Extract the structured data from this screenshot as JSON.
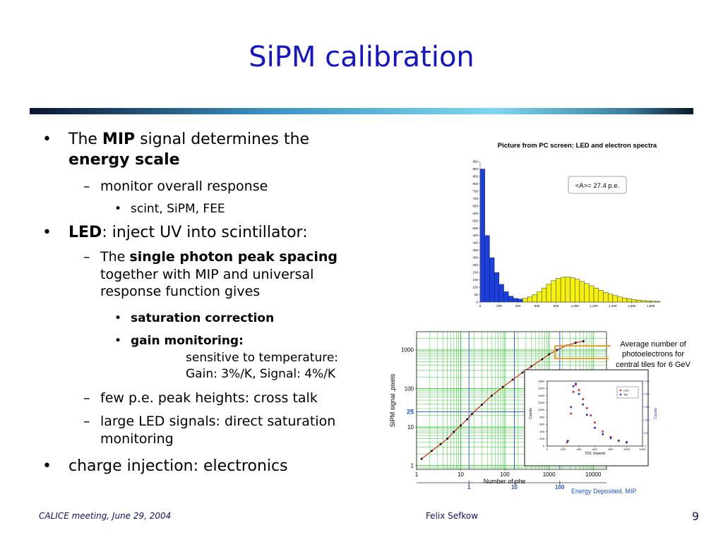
{
  "slide": {
    "title": "SiPM calibration",
    "bullets": [
      {
        "level": 1,
        "marker": "•",
        "runs": [
          {
            "text": "The "
          },
          {
            "text": "MIP",
            "bold": true
          },
          {
            "text": " signal determines the "
          },
          {
            "text": "energy scale",
            "bold": true
          }
        ]
      },
      {
        "level": 2,
        "marker": "–",
        "runs": [
          {
            "text": "monitor overall response"
          }
        ]
      },
      {
        "level": 3,
        "marker": "•",
        "runs": [
          {
            "text": "scint, SiPM, FEE"
          }
        ]
      },
      {
        "level": 1,
        "marker": "•",
        "runs": [
          {
            "text": "LED",
            "bold": true
          },
          {
            "text": ": inject UV into scintillator:"
          }
        ]
      },
      {
        "level": 2,
        "marker": "–",
        "runs": [
          {
            "text": "The "
          },
          {
            "text": "single photon peak spacing",
            "bold": true
          },
          {
            "text": " together with MIP and universal response function gives"
          }
        ]
      },
      {
        "level": 3,
        "marker": "•",
        "runs": [
          {
            "text": "saturation correction",
            "bold": true
          }
        ]
      },
      {
        "level": 3,
        "marker": "•",
        "runs": [
          {
            "text": "gain monitoring:",
            "bold": true
          }
        ],
        "notes": [
          "sensitive to temperature:",
          "Gain: 3%/K, Signal: 4%/K"
        ]
      },
      {
        "level": 2,
        "marker": "–",
        "runs": [
          {
            "text": "few p.e. peak heights: cross talk"
          }
        ]
      },
      {
        "level": 2,
        "marker": "–",
        "runs": [
          {
            "text": "large LED signals: direct saturation monitoring"
          }
        ]
      },
      {
        "level": 1,
        "marker": "•",
        "runs": [
          {
            "text": "charge injection: electronics"
          }
        ]
      }
    ],
    "footer": {
      "left": "CALICE meeting, June 29, 2004",
      "center": "Felix Sefkow",
      "page": 9
    }
  },
  "chart_data": [
    {
      "type": "histogram",
      "title": "Picture from PC screen: LED and electron spectra",
      "annotation": "<A>= 27.4 p.e.",
      "bins": [
        0,
        50,
        100,
        150,
        200,
        250,
        300,
        350,
        400,
        450,
        500,
        550,
        600,
        650,
        700,
        750,
        800,
        850,
        900,
        950,
        1000,
        1050,
        1100,
        1150,
        1200,
        1250,
        1300,
        1350,
        1400,
        1450,
        1500,
        1550,
        1600,
        1650,
        1700,
        1750,
        1800,
        1850,
        1900
      ],
      "series": [
        {
          "color": "#1c3fe0",
          "values": [
            900,
            450,
            300,
            200,
            120,
            70,
            40,
            25,
            20,
            null,
            null,
            null,
            null,
            null,
            null,
            null,
            null,
            null,
            null,
            null,
            null,
            null,
            null,
            null,
            null,
            null,
            null,
            null,
            null,
            null,
            null,
            null,
            null,
            null,
            null,
            null,
            null,
            null
          ]
        },
        {
          "color": "#f4f10c",
          "values": [
            null,
            null,
            null,
            null,
            null,
            null,
            null,
            null,
            null,
            25,
            35,
            50,
            70,
            95,
            120,
            145,
            160,
            168,
            170,
            165,
            155,
            140,
            125,
            110,
            95,
            80,
            66,
            54,
            44,
            35,
            28,
            22,
            17,
            13,
            10,
            8,
            6,
            5
          ]
        }
      ],
      "xlim": [
        0,
        1900
      ],
      "ylim": [
        0,
        950
      ],
      "xticks": [
        0,
        200,
        400,
        600,
        800,
        {
          "value": 1000,
          "label": "1,000"
        },
        {
          "value": 1200,
          "label": "1,200"
        },
        {
          "value": 1400,
          "label": "1,400"
        },
        {
          "value": 1600,
          "label": "1,600"
        },
        {
          "value": 1800,
          "label": "1,800"
        }
      ],
      "yticks": [
        0,
        50,
        100,
        150,
        200,
        250,
        300,
        350,
        400,
        450,
        500,
        550,
        600,
        650,
        700,
        750,
        800,
        850,
        900,
        950
      ]
    },
    {
      "type": "scatter",
      "ylabel": "SiPM signal ,pixels",
      "xlabel": "Number of phe",
      "x2label": "Energy Deposited, MIP",
      "annotation": "Average number of photoelectrons for central tiles for 6 GeV",
      "xlog": true,
      "ylog": true,
      "xlim": [
        1,
        20000
      ],
      "ylim": [
        0.8,
        3000
      ],
      "xticks": [
        1,
        10,
        100,
        1000,
        10000
      ],
      "yticks": [
        1,
        10,
        100,
        1000
      ],
      "y_marker": {
        "value": 25,
        "color": "#1d4fdc"
      },
      "x2lim": [
        0.07,
        1070
      ],
      "x2ticks": [
        1,
        10,
        100
      ],
      "x2color": "#1d4fdc",
      "grid_color": "#33cc33",
      "series": [
        {
          "color": "#000000",
          "line_color": "#d9301c",
          "x": [
            1.3,
            2.2,
            3.5,
            5,
            7,
            10,
            14,
            18,
            30,
            50,
            90,
            150,
            250,
            400,
            700,
            1000,
            1500,
            2500,
            4000,
            6000
          ],
          "values": [
            1.5,
            2.4,
            3.6,
            5,
            7.5,
            11,
            16,
            22,
            38,
            65,
            110,
            170,
            260,
            380,
            580,
            780,
            1000,
            1300,
            1550,
            1700
          ]
        }
      ]
    },
    {
      "type": "scatter",
      "xlabel": "TDC channel",
      "ylabel": "Counts",
      "y2label": "Counts",
      "legend": "upper right",
      "xlim": [
        0,
        1200
      ],
      "ylim": [
        0,
        1800
      ],
      "y2lim": [
        0,
        250
      ],
      "xticks": [
        0,
        200,
        400,
        600,
        800,
        1000,
        1200
      ],
      "yticks": [
        0,
        200,
        400,
        600,
        800,
        1000,
        1200,
        1400,
        1600,
        1800
      ],
      "y2ticks": [
        0,
        50,
        100,
        150,
        200,
        250
      ],
      "series": [
        {
          "name": "LED",
          "color": "#e0201a",
          "x": [
            250,
            300,
            330,
            360,
            400,
            450,
            500,
            550,
            600,
            700,
            800,
            900,
            1000
          ],
          "values": [
            100,
            900,
            1500,
            1700,
            1550,
            1300,
            1050,
            850,
            650,
            400,
            250,
            150,
            100
          ]
        },
        {
          "name": "Tile",
          "color": "#1a2ae0",
          "axis": "y2",
          "x": [
            260,
            300,
            330,
            360,
            400,
            450,
            500,
            600,
            700,
            800,
            900,
            1000
          ],
          "values": [
            20,
            150,
            230,
            240,
            200,
            160,
            120,
            70,
            45,
            30,
            20,
            15
          ]
        }
      ]
    }
  ]
}
